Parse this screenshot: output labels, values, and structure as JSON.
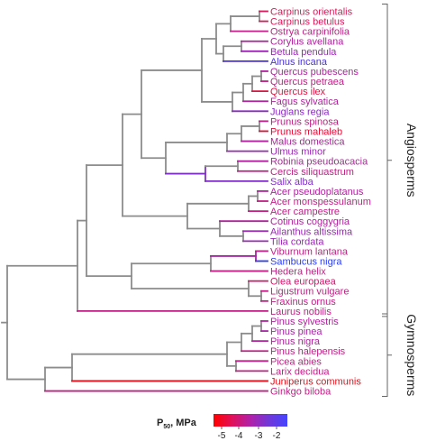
{
  "leaves": [
    {
      "name": "Carpinus orientalis",
      "color": "#d81a5a"
    },
    {
      "name": "Carpinus betulus",
      "color": "#d81a5a"
    },
    {
      "name": "Ostrya carpinifolia",
      "color": "#c0208a"
    },
    {
      "name": "Corylus avellana",
      "color": "#b0229e"
    },
    {
      "name": "Betula pendula",
      "color": "#9a28b4"
    },
    {
      "name": "Alnus incana",
      "color": "#4a34dc"
    },
    {
      "name": "Quercus pubescens",
      "color": "#b0229e"
    },
    {
      "name": "Quercus petraea",
      "color": "#c01f86"
    },
    {
      "name": "Quercus ilex",
      "color": "#e41040"
    },
    {
      "name": "Fagus sylvatica",
      "color": "#b0229e"
    },
    {
      "name": "Juglans regia",
      "color": "#8a2cc0"
    },
    {
      "name": "Prunus spinosa",
      "color": "#c01f86"
    },
    {
      "name": "Prunus mahaleb",
      "color": "#e40c34"
    },
    {
      "name": "Malus domestica",
      "color": "#b0229e"
    },
    {
      "name": "Ulmus minor",
      "color": "#9a28b4"
    },
    {
      "name": "Robinia pseudoacacia",
      "color": "#b0229e"
    },
    {
      "name": "Cercis siliquastrum",
      "color": "#c01f86"
    },
    {
      "name": "Salix alba",
      "color": "#8030c4"
    },
    {
      "name": "Acer pseudoplatanus",
      "color": "#b0229e"
    },
    {
      "name": "Acer monspessulanum",
      "color": "#c01f86"
    },
    {
      "name": "Acer campestre",
      "color": "#c01f86"
    },
    {
      "name": "Cotinus coggygria",
      "color": "#b0229e"
    },
    {
      "name": "Ailanthus altissima",
      "color": "#9a28b4"
    },
    {
      "name": "Tilia cordata",
      "color": "#9a28b4"
    },
    {
      "name": "Viburnum lantana",
      "color": "#c01f86"
    },
    {
      "name": "Sambucus nigra",
      "color": "#2a3cf0"
    },
    {
      "name": "Hedera helix",
      "color": "#c01f86"
    },
    {
      "name": "Olea europaea",
      "color": "#d0186c"
    },
    {
      "name": "Ligustrum vulgare",
      "color": "#c01f86"
    },
    {
      "name": "Fraxinus ornus",
      "color": "#c01f86"
    },
    {
      "name": "Laurus nobilis",
      "color": "#c01f86"
    },
    {
      "name": "Pinus sylvestris",
      "color": "#b0229e"
    },
    {
      "name": "Pinus pinea",
      "color": "#a824a6"
    },
    {
      "name": "Pinus nigra",
      "color": "#b0229e"
    },
    {
      "name": "Pinus halepensis",
      "color": "#c01f86"
    },
    {
      "name": "Picea abies",
      "color": "#c01f86"
    },
    {
      "name": "Larix decidua",
      "color": "#c01f86"
    },
    {
      "name": "Juniperus communis",
      "color": "#ea0c18"
    },
    {
      "name": "Ginkgo biloba",
      "color": "#c01f86"
    }
  ],
  "clades": [
    {
      "name": "Angiosperms",
      "first": 0,
      "last": 30
    },
    {
      "name": "Gymnosperms",
      "first": 31,
      "last": 38
    }
  ],
  "legend": {
    "title_main": "P",
    "title_sub": "50",
    "title_rest": ", MPa",
    "ticks": [
      "-5",
      "-4",
      "-3",
      "-2"
    ],
    "gradient": [
      "#ff0000",
      "#e0105a",
      "#b020a8",
      "#7038d8",
      "#4444ff"
    ]
  },
  "branch_color": "#8c8c8c"
}
